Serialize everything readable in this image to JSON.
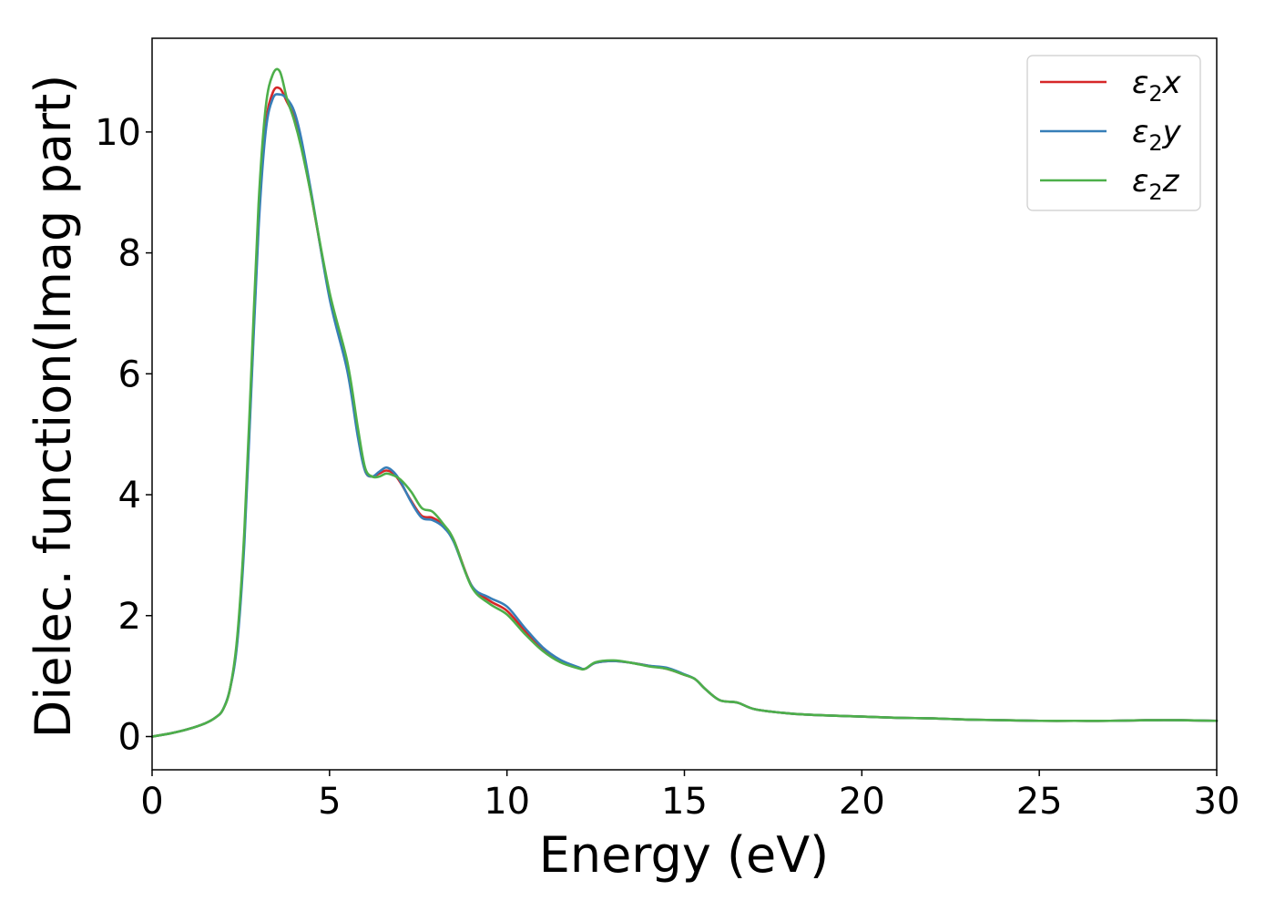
{
  "chart_data": {
    "type": "line",
    "xlabel": "Energy (eV)",
    "ylabel": "Dielec. function(Imag part)",
    "xlim": [
      0,
      30
    ],
    "ylim": [
      -0.55,
      11.55
    ],
    "xticks": [
      0,
      5,
      10,
      15,
      20,
      25,
      30
    ],
    "yticks": [
      0,
      2,
      4,
      6,
      8,
      10
    ],
    "grid": false,
    "legend_position": "top-right",
    "series": [
      {
        "name": "ε₂x",
        "legend_base": "ε",
        "legend_sub": "2",
        "legend_var": "x",
        "color": "#d62728",
        "x": [
          0,
          0.5,
          1,
          1.5,
          1.8,
          2.0,
          2.2,
          2.4,
          2.6,
          2.8,
          3.0,
          3.2,
          3.4,
          3.6,
          3.8,
          4.0,
          4.2,
          4.5,
          5.0,
          5.5,
          5.8,
          6.0,
          6.2,
          6.4,
          6.6,
          6.8,
          7.0,
          7.3,
          7.6,
          7.9,
          8.2,
          8.5,
          9.0,
          9.5,
          10.0,
          10.5,
          11.0,
          11.5,
          12.0,
          12.2,
          12.5,
          13.0,
          13.5,
          14.0,
          14.5,
          15.0,
          15.3,
          15.6,
          16.0,
          16.5,
          17.0,
          18.0,
          19.0,
          20.0,
          21.0,
          22.0,
          23.0,
          24.0,
          25.0,
          26.0,
          27.0,
          28.0,
          29.0,
          30.0
        ],
        "y": [
          0.0,
          0.05,
          0.12,
          0.22,
          0.32,
          0.45,
          0.8,
          1.6,
          3.3,
          5.9,
          8.5,
          10.1,
          10.65,
          10.72,
          10.5,
          10.25,
          9.8,
          8.9,
          7.3,
          6.1,
          5.0,
          4.4,
          4.3,
          4.35,
          4.4,
          4.35,
          4.2,
          3.9,
          3.65,
          3.62,
          3.5,
          3.25,
          2.5,
          2.25,
          2.08,
          1.75,
          1.45,
          1.25,
          1.14,
          1.12,
          1.22,
          1.25,
          1.22,
          1.17,
          1.12,
          1.02,
          0.95,
          0.78,
          0.6,
          0.56,
          0.45,
          0.38,
          0.35,
          0.33,
          0.31,
          0.3,
          0.28,
          0.27,
          0.26,
          0.26,
          0.26,
          0.27,
          0.27,
          0.26
        ]
      },
      {
        "name": "ε₂y",
        "legend_base": "ε",
        "legend_sub": "2",
        "legend_var": "y",
        "color": "#377eb8",
        "x": [
          0,
          0.5,
          1,
          1.5,
          1.8,
          2.0,
          2.2,
          2.4,
          2.6,
          2.8,
          3.0,
          3.2,
          3.4,
          3.6,
          3.8,
          4.0,
          4.2,
          4.5,
          5.0,
          5.5,
          5.8,
          6.0,
          6.2,
          6.4,
          6.6,
          6.8,
          7.0,
          7.3,
          7.6,
          7.9,
          8.2,
          8.5,
          9.0,
          9.5,
          10.0,
          10.5,
          11.0,
          11.5,
          12.0,
          12.2,
          12.5,
          13.0,
          13.5,
          14.0,
          14.5,
          15.0,
          15.3,
          15.6,
          16.0,
          16.5,
          17.0,
          18.0,
          19.0,
          20.0,
          21.0,
          22.0,
          23.0,
          24.0,
          25.0,
          26.0,
          27.0,
          28.0,
          29.0,
          30.0
        ],
        "y": [
          0.0,
          0.05,
          0.12,
          0.22,
          0.32,
          0.45,
          0.8,
          1.55,
          3.2,
          5.8,
          8.4,
          10.0,
          10.55,
          10.62,
          10.55,
          10.35,
          9.9,
          8.95,
          7.25,
          6.05,
          4.95,
          4.4,
          4.3,
          4.38,
          4.45,
          4.38,
          4.22,
          3.88,
          3.62,
          3.58,
          3.47,
          3.22,
          2.5,
          2.3,
          2.15,
          1.8,
          1.48,
          1.27,
          1.15,
          1.12,
          1.22,
          1.25,
          1.22,
          1.17,
          1.14,
          1.03,
          0.95,
          0.78,
          0.6,
          0.56,
          0.45,
          0.38,
          0.35,
          0.33,
          0.31,
          0.3,
          0.28,
          0.27,
          0.26,
          0.26,
          0.26,
          0.27,
          0.27,
          0.26
        ]
      },
      {
        "name": "ε₂z",
        "legend_base": "ε",
        "legend_sub": "2",
        "legend_var": "z",
        "color": "#4daf4a",
        "x": [
          0,
          0.5,
          1,
          1.5,
          1.8,
          2.0,
          2.2,
          2.4,
          2.6,
          2.8,
          3.0,
          3.2,
          3.4,
          3.6,
          3.8,
          4.0,
          4.2,
          4.5,
          5.0,
          5.5,
          5.8,
          6.0,
          6.2,
          6.4,
          6.6,
          6.8,
          7.0,
          7.3,
          7.6,
          7.9,
          8.2,
          8.5,
          9.0,
          9.5,
          10.0,
          10.5,
          11.0,
          11.5,
          12.0,
          12.2,
          12.5,
          13.0,
          13.5,
          14.0,
          14.5,
          15.0,
          15.3,
          15.6,
          16.0,
          16.5,
          17.0,
          18.0,
          19.0,
          20.0,
          21.0,
          22.0,
          23.0,
          24.0,
          25.0,
          26.0,
          27.0,
          28.0,
          29.0,
          30.0
        ],
        "y": [
          0.0,
          0.05,
          0.12,
          0.22,
          0.32,
          0.45,
          0.8,
          1.65,
          3.4,
          6.1,
          8.8,
          10.4,
          10.95,
          11.0,
          10.55,
          10.2,
          9.75,
          8.9,
          7.35,
          6.2,
          5.1,
          4.45,
          4.3,
          4.3,
          4.35,
          4.32,
          4.25,
          4.05,
          3.78,
          3.72,
          3.52,
          3.25,
          2.48,
          2.2,
          2.02,
          1.7,
          1.42,
          1.23,
          1.13,
          1.12,
          1.23,
          1.26,
          1.22,
          1.16,
          1.12,
          1.02,
          0.95,
          0.78,
          0.6,
          0.56,
          0.45,
          0.38,
          0.35,
          0.33,
          0.31,
          0.3,
          0.28,
          0.27,
          0.26,
          0.26,
          0.26,
          0.27,
          0.27,
          0.26
        ]
      }
    ]
  }
}
